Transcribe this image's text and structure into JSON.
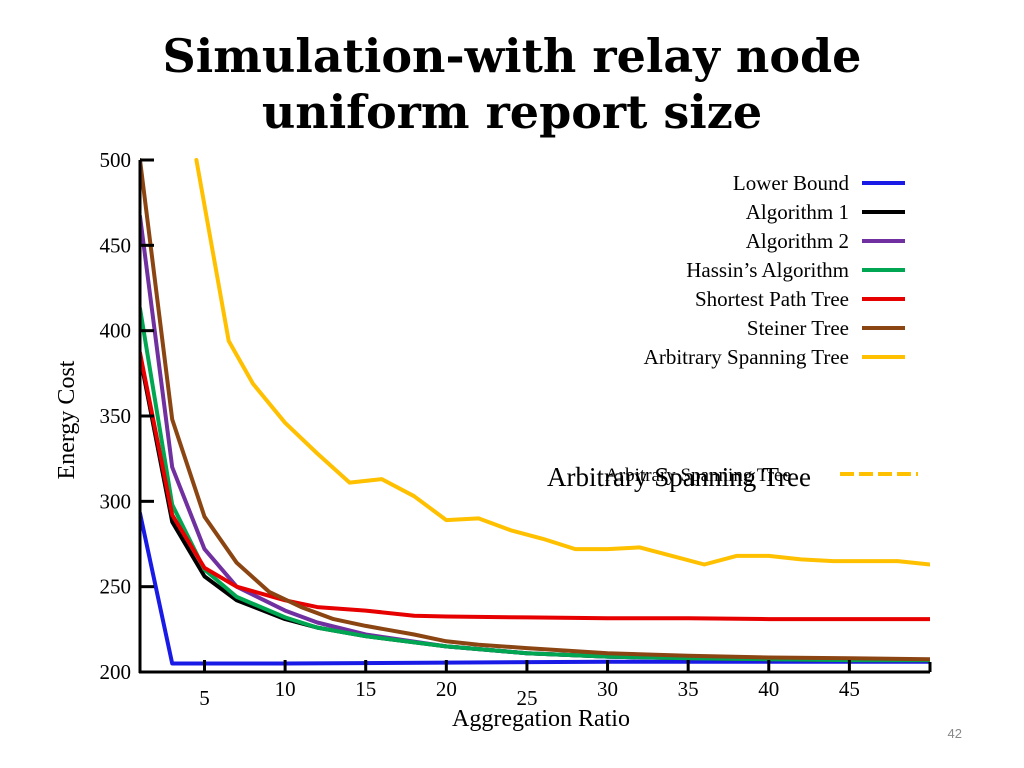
{
  "slide": {
    "title_line1": "Simulation-with relay node",
    "title_line2": "uniform report size",
    "page_number": "42"
  },
  "chart_data": {
    "type": "line",
    "xlabel": "Aggregation Ratio",
    "ylabel": "Energy Cost",
    "xlim": [
      1,
      50
    ],
    "ylim": [
      200,
      500
    ],
    "x_ticks": [
      5,
      10,
      15,
      20,
      25,
      30,
      35,
      40,
      45
    ],
    "y_ticks": [
      200,
      250,
      300,
      350,
      400,
      450,
      500
    ],
    "grid": false,
    "legend_position": "top-right",
    "annotations": [
      "Arbitrary Spanning Tree",
      "Arbitrary Spanning Tree"
    ],
    "series": [
      {
        "name": "Lower Bound",
        "color": "#1a1ae6",
        "x": [
          1,
          3,
          5,
          10,
          20,
          30,
          40,
          50
        ],
        "y": [
          293,
          205,
          205,
          205,
          205.5,
          206,
          206,
          206
        ]
      },
      {
        "name": "Algorithm 1",
        "color": "#000000",
        "x": [
          1,
          3,
          5,
          7,
          10,
          12,
          15,
          20,
          25,
          30,
          35,
          40,
          45,
          50
        ],
        "y": [
          385,
          288,
          256,
          242,
          231,
          226,
          221,
          215,
          211,
          209,
          208,
          207.5,
          207,
          207
        ]
      },
      {
        "name": "Algorithm 2",
        "color": "#7030a0",
        "x": [
          1,
          3,
          5,
          7,
          10,
          12,
          15,
          20,
          25,
          30,
          35,
          40,
          45,
          50
        ],
        "y": [
          467,
          320,
          272,
          250,
          236,
          229,
          222,
          215,
          211,
          209,
          208,
          207.5,
          207,
          207
        ]
      },
      {
        "name": "Hassin’s Algorithm",
        "color": "#00a651",
        "x": [
          1,
          3,
          5,
          7,
          10,
          12,
          15,
          20,
          25,
          30,
          35,
          40,
          45,
          50
        ],
        "y": [
          413,
          298,
          260,
          244,
          232,
          226,
          221,
          215,
          211,
          209,
          208,
          207.5,
          207,
          207
        ]
      },
      {
        "name": "Shortest Path Tree",
        "color": "#e60000",
        "x": [
          1,
          3,
          5,
          7,
          10,
          12,
          15,
          18,
          20,
          25,
          30,
          35,
          40,
          45,
          50
        ],
        "y": [
          387,
          292,
          261,
          250,
          242,
          238,
          236,
          233,
          232.5,
          232,
          231.5,
          231.5,
          231,
          231,
          231
        ]
      },
      {
        "name": "Steiner Tree",
        "color": "#8b4513",
        "x": [
          1,
          3,
          5,
          7,
          9,
          11,
          13,
          15,
          18,
          20,
          22,
          25,
          30,
          35,
          40,
          45,
          50
        ],
        "y": [
          500,
          348,
          291,
          264,
          247,
          238,
          231,
          227,
          222,
          218,
          216,
          214,
          211,
          209.5,
          208.5,
          208,
          207.5
        ]
      },
      {
        "name": "Arbitrary Spanning Tree",
        "color": "#ffc000",
        "x": [
          4.5,
          6.5,
          8,
          10,
          12,
          14,
          16,
          18,
          20,
          22,
          24,
          26,
          28,
          30,
          32,
          34,
          36,
          38,
          40,
          42,
          44,
          46,
          48,
          50
        ],
        "y": [
          500,
          394,
          369,
          346,
          328,
          311,
          313,
          303,
          289,
          290,
          283,
          278,
          272,
          272,
          273,
          268,
          263,
          268,
          268,
          266,
          265,
          265,
          265,
          263
        ]
      }
    ]
  }
}
